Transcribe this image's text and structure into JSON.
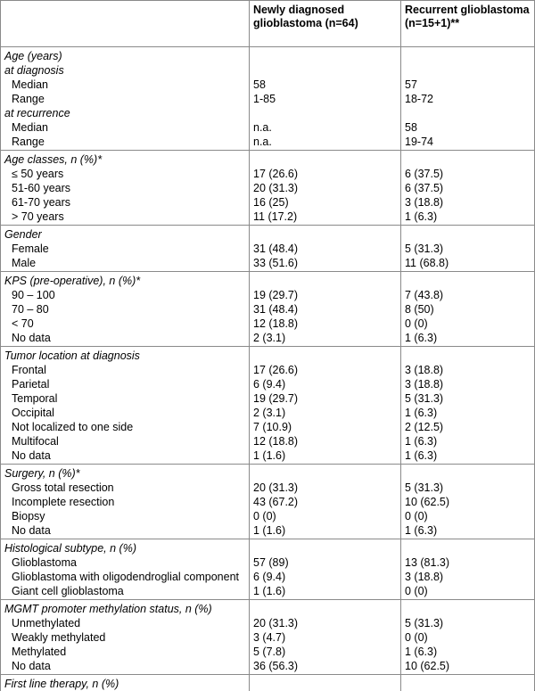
{
  "header": {
    "new": "Newly diagnosed glioblastoma (n=64)",
    "recurrent": "Recurrent glioblastoma (n=15+1)**"
  },
  "sections": [
    {
      "rows": [
        {
          "heading": "Age (years)"
        },
        {
          "heading": "at diagnosis"
        },
        {
          "label": "Median",
          "new": "58",
          "recurrent": "57"
        },
        {
          "label": "Range",
          "new": "1-85",
          "recurrent": "18-72"
        },
        {
          "heading": "at recurrence"
        },
        {
          "label": "Median",
          "new": "n.a.",
          "recurrent": "58"
        },
        {
          "label": "Range",
          "new": "n.a.",
          "recurrent": "19-74"
        }
      ]
    },
    {
      "rows": [
        {
          "heading": "Age classes, n (%)*"
        },
        {
          "label": "≤ 50 years",
          "new": "17 (26.6)",
          "recurrent": "6 (37.5)"
        },
        {
          "label": "51-60 years",
          "new": "20 (31.3)",
          "recurrent": "6 (37.5)"
        },
        {
          "label": "61-70 years",
          "new": "16 (25)",
          "recurrent": "3 (18.8)"
        },
        {
          "label": "> 70 years",
          "new": "11 (17.2)",
          "recurrent": "1 (6.3)"
        }
      ]
    },
    {
      "rows": [
        {
          "heading": "Gender"
        },
        {
          "label": "Female",
          "new": "31 (48.4)",
          "recurrent": "5 (31.3)"
        },
        {
          "label": "Male",
          "new": "33 (51.6)",
          "recurrent": "11 (68.8)"
        }
      ]
    },
    {
      "rows": [
        {
          "heading": "KPS (pre-operative), n (%)*"
        },
        {
          "label": "90 – 100",
          "new": "19 (29.7)",
          "recurrent": "7 (43.8)"
        },
        {
          "label": "70 – 80",
          "new": "31 (48.4)",
          "recurrent": "8 (50)"
        },
        {
          "label": "< 70",
          "new": "12 (18.8)",
          "recurrent": "0 (0)"
        },
        {
          "label": "No data",
          "new": "2 (3.1)",
          "recurrent": "1 (6.3)"
        }
      ]
    },
    {
      "rows": [
        {
          "heading": "Tumor location at diagnosis"
        },
        {
          "label": "Frontal",
          "new": "17 (26.6)",
          "recurrent": "3 (18.8)"
        },
        {
          "label": "Parietal",
          "new": "6 (9.4)",
          "recurrent": "3 (18.8)"
        },
        {
          "label": "Temporal",
          "new": "19 (29.7)",
          "recurrent": "5 (31.3)"
        },
        {
          "label": "Occipital",
          "new": "2 (3.1)",
          "recurrent": "1 (6.3)"
        },
        {
          "label": "Not localized to one side",
          "new": "7 (10.9)",
          "recurrent": "2 (12.5)"
        },
        {
          "label": "Multifocal",
          "new": "12 (18.8)",
          "recurrent": "1 (6.3)"
        },
        {
          "label": "No data",
          "new": "1 (1.6)",
          "recurrent": "1 (6.3)"
        }
      ]
    },
    {
      "rows": [
        {
          "heading": "Surgery, n (%)*"
        },
        {
          "label": "Gross total resection",
          "new": "20 (31.3)",
          "recurrent": "5 (31.3)"
        },
        {
          "label": "Incomplete resection",
          "new": "43 (67.2)",
          "recurrent": "10 (62.5)"
        },
        {
          "label": "Biopsy",
          "new": "0 (0)",
          "recurrent": "0 (0)"
        },
        {
          "label": "No data",
          "new": "1 (1.6)",
          "recurrent": "1 (6.3)"
        }
      ]
    },
    {
      "rows": [
        {
          "heading": "Histological subtype, n (%)"
        },
        {
          "label": "Glioblastoma",
          "new": "57 (89)",
          "recurrent": "13 (81.3)"
        },
        {
          "label": "Glioblastoma with oligodendroglial component",
          "new": "6 (9.4)",
          "recurrent": "3 (18.8)"
        },
        {
          "label": "Giant cell glioblastoma",
          "new": "1 (1.6)",
          "recurrent": "0 (0)"
        }
      ]
    },
    {
      "rows": [
        {
          "heading": "MGMT promoter methylation status, n (%)"
        },
        {
          "label": "Unmethylated",
          "new": "20 (31.3)",
          "recurrent": "5 (31.3)"
        },
        {
          "label": "Weakly methylated",
          "new": "3 (4.7)",
          "recurrent": "0 (0)"
        },
        {
          "label": "Methylated",
          "new": "5 (7.8)",
          "recurrent": "1 (6.3)"
        },
        {
          "label": "No data",
          "new": "36 (56.3)",
          "recurrent": "10 (62.5)"
        }
      ]
    },
    {
      "rows": [
        {
          "heading": "First line therapy, n (%)"
        }
      ]
    }
  ]
}
